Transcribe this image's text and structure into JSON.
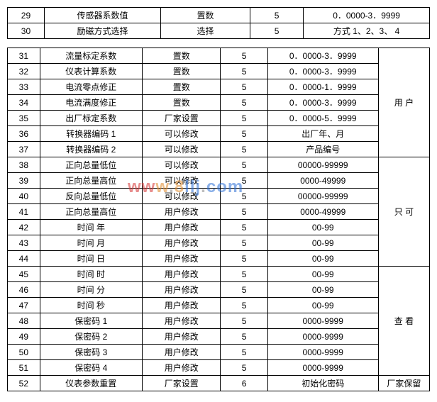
{
  "top_rows": [
    {
      "idx": "29",
      "name": "传感器系数值",
      "op": "置数",
      "lvl": "5",
      "range": "0．0000-3．9999"
    },
    {
      "idx": "30",
      "name": "励磁方式选择",
      "op": "选择",
      "lvl": "5",
      "range": "方式 1、2、3、 4"
    }
  ],
  "main_rows": [
    {
      "idx": "31",
      "name": "流量标定系数",
      "op": "置数",
      "lvl": "5",
      "range": "0．0000-3．9999"
    },
    {
      "idx": "32",
      "name": "仪表计算系数",
      "op": "置数",
      "lvl": "5",
      "range": "0．0000-3．9999"
    },
    {
      "idx": "33",
      "name": "电流零点修正",
      "op": "置数",
      "lvl": "5",
      "range": "0．0000-1．9999"
    },
    {
      "idx": "34",
      "name": "电流满度修正",
      "op": "置数",
      "lvl": "5",
      "range": "0．0000-3．9999"
    },
    {
      "idx": "35",
      "name": "出厂标定系数",
      "op": "厂家设置",
      "lvl": "5",
      "range": "0．0000-5．9999"
    },
    {
      "idx": "36",
      "name": "转换器编码  1",
      "op": "可以修改",
      "lvl": "5",
      "range": "出厂年、月"
    },
    {
      "idx": "37",
      "name": "转换器编码  2",
      "op": "可以修改",
      "lvl": "5",
      "range": "产品编号"
    },
    {
      "idx": "38",
      "name": "正向总量低位",
      "op": "可以修改",
      "lvl": "5",
      "range": "00000-99999"
    },
    {
      "idx": "39",
      "name": "正向总量高位",
      "op": "可以修改",
      "lvl": "5",
      "range": "0000-49999"
    },
    {
      "idx": "40",
      "name": "反向总量低位",
      "op": "可以修改",
      "lvl": "5",
      "range": "00000-99999"
    },
    {
      "idx": "41",
      "name": "正向总量高位",
      "op": "用户修改",
      "lvl": "5",
      "range": "0000-49999"
    },
    {
      "idx": "42",
      "name": "时间    年",
      "op": "用户修改",
      "lvl": "5",
      "range": "00-99"
    },
    {
      "idx": "43",
      "name": "时间    月",
      "op": "用户修改",
      "lvl": "5",
      "range": "00-99"
    },
    {
      "idx": "44",
      "name": "时间    日",
      "op": "用户修改",
      "lvl": "5",
      "range": "00-99"
    },
    {
      "idx": "45",
      "name": "时间    时",
      "op": "用户修改",
      "lvl": "5",
      "range": "00-99"
    },
    {
      "idx": "46",
      "name": "时间    分",
      "op": "用户修改",
      "lvl": "5",
      "range": "00-99"
    },
    {
      "idx": "47",
      "name": "时间    秒",
      "op": "用户修改",
      "lvl": "5",
      "range": "00-99"
    },
    {
      "idx": "48",
      "name": "保密码  1",
      "op": "用户修改",
      "lvl": "5",
      "range": "0000-9999"
    },
    {
      "idx": "49",
      "name": "保密码  2",
      "op": "用户修改",
      "lvl": "5",
      "range": "0000-9999"
    },
    {
      "idx": "50",
      "name": "保密码  3",
      "op": "用户修改",
      "lvl": "5",
      "range": "0000-9999"
    },
    {
      "idx": "51",
      "name": "保密码  4",
      "op": "用户修改",
      "lvl": "5",
      "range": "0000-9999"
    },
    {
      "idx": "52",
      "name": "仪表参数重置",
      "op": "厂家设置",
      "lvl": "6",
      "range": "初始化密码"
    }
  ],
  "note1": "用    户",
  "note2": "只    可",
  "note3": "查    看",
  "note_last": "厂家保留",
  "watermark": {
    "w1": "w",
    "w2": "w",
    "w3": "w",
    "dot": ".",
    "b1": "8",
    "b2": "l",
    "b3": "l",
    "b4": "j",
    "dot2": ".",
    "c1": "c",
    "c2": "o",
    "c3": "m"
  }
}
